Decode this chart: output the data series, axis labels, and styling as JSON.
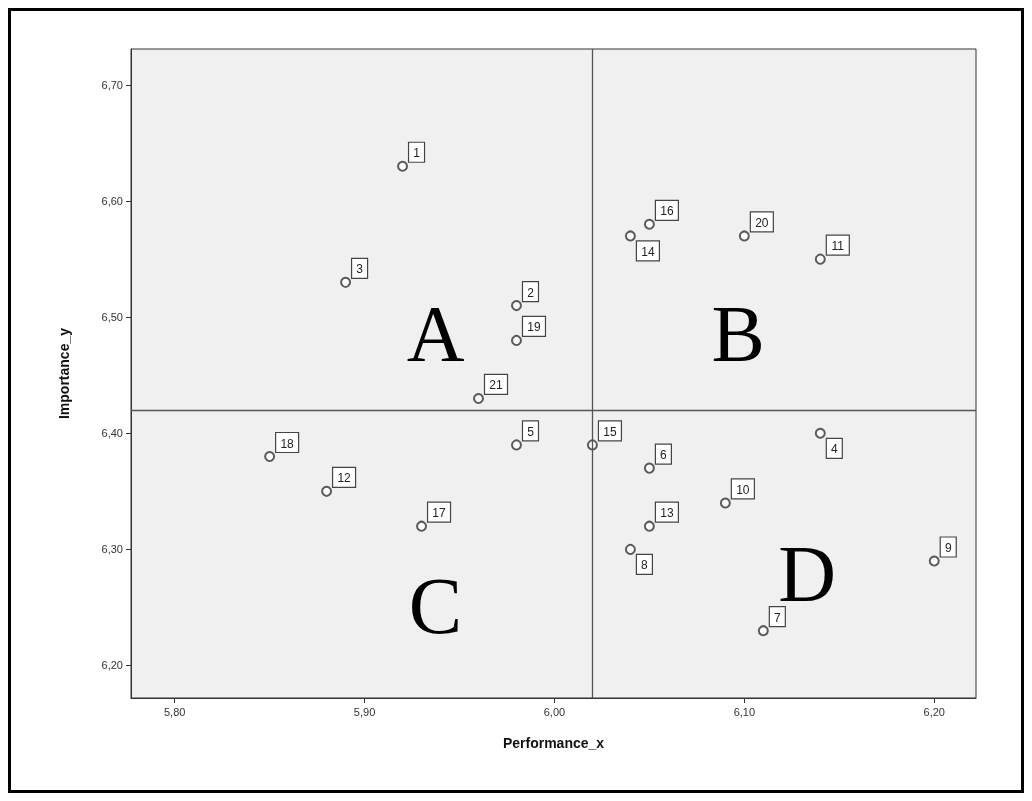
{
  "chart_data": {
    "type": "scatter",
    "xlabel": "Performance_x",
    "ylabel": "Importance_y",
    "x": [
      5.92,
      5.98,
      5.89,
      6.14,
      5.98,
      6.05,
      6.11,
      6.04,
      6.2,
      6.09,
      6.14,
      5.88,
      6.05,
      6.04,
      6.02,
      6.05,
      5.93,
      5.85,
      5.98,
      6.1,
      5.96
    ],
    "values": [
      6.63,
      6.51,
      6.53,
      6.4,
      6.39,
      6.37,
      6.23,
      6.3,
      6.29,
      6.34,
      6.55,
      6.35,
      6.32,
      6.57,
      6.39,
      6.58,
      6.32,
      6.38,
      6.48,
      6.57,
      6.43
    ],
    "color": "#333333",
    "marker": "circle",
    "xlim": [
      5.777,
      6.222
    ],
    "ylim": [
      6.172,
      6.731
    ],
    "xticks": [
      {
        "value": 5.8,
        "label": "5,80"
      },
      {
        "value": 5.9,
        "label": "5,90"
      },
      {
        "value": 6.0,
        "label": "6,00"
      },
      {
        "value": 6.1,
        "label": "6,10"
      },
      {
        "value": 6.2,
        "label": "6,20"
      }
    ],
    "yticks": [
      {
        "value": 6.2,
        "label": "6,20"
      },
      {
        "value": 6.3,
        "label": "6,30"
      },
      {
        "value": 6.4,
        "label": "6,40"
      },
      {
        "value": 6.5,
        "label": "6,50"
      },
      {
        "value": 6.6,
        "label": "6,60"
      },
      {
        "value": 6.7,
        "label": "6,70"
      }
    ],
    "ref_lines": [
      {
        "axis": "x",
        "value": 6.02,
        "color": "#555555"
      },
      {
        "axis": "y",
        "value": 6.42,
        "color": "#555555"
      }
    ],
    "annotations": [
      "A",
      "B",
      "C",
      "D",
      {
        "text": "1",
        "x": 5.92,
        "y": 6.63
      },
      {
        "text": "2",
        "x": 5.98,
        "y": 6.51
      },
      {
        "text": "3",
        "x": 5.89,
        "y": 6.53
      },
      {
        "text": "4",
        "x": 6.14,
        "y": 6.4
      },
      {
        "text": "5",
        "x": 5.98,
        "y": 6.39
      },
      {
        "text": "6",
        "x": 6.05,
        "y": 6.37
      },
      {
        "text": "7",
        "x": 6.11,
        "y": 6.23
      },
      {
        "text": "8",
        "x": 6.04,
        "y": 6.3
      },
      {
        "text": "9",
        "x": 6.2,
        "y": 6.29
      },
      {
        "text": "10",
        "x": 6.09,
        "y": 6.34
      },
      {
        "text": "11",
        "x": 6.14,
        "y": 6.55
      },
      {
        "text": "12",
        "x": 5.88,
        "y": 6.35
      },
      {
        "text": "13",
        "x": 6.05,
        "y": 6.32
      },
      {
        "text": "14",
        "x": 6.04,
        "y": 6.57
      },
      {
        "text": "15",
        "x": 6.02,
        "y": 6.39
      },
      {
        "text": "16",
        "x": 6.05,
        "y": 6.58
      },
      {
        "text": "17",
        "x": 5.93,
        "y": 6.32
      },
      {
        "text": "18",
        "x": 5.85,
        "y": 6.38
      },
      {
        "text": "19",
        "x": 5.98,
        "y": 6.48
      },
      {
        "text": "20",
        "x": 6.1,
        "y": 6.57
      },
      {
        "text": "21",
        "x": 5.96,
        "y": 6.43
      }
    ],
    "grid": false
  }
}
